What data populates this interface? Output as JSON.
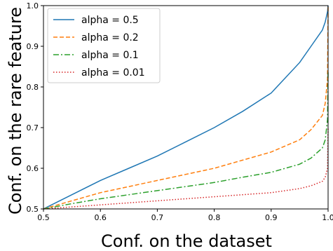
{
  "chart_data": {
    "type": "line",
    "title": "",
    "xlabel": "Conf. on the dataset",
    "ylabel": "Conf. on the rare feature",
    "xlim": [
      0.5,
      1.0
    ],
    "ylim": [
      0.5,
      1.0
    ],
    "xticks": [
      0.5,
      0.6,
      0.7,
      0.8,
      0.9,
      1.0
    ],
    "xtick_labels": [
      "0.5",
      "0.6",
      "0.7",
      "0.8",
      "0.9",
      "1.0"
    ],
    "yticks": [
      0.5,
      0.6,
      0.7,
      0.8,
      0.9,
      1.0
    ],
    "ytick_labels": [
      "0.5",
      "0.6",
      "0.7",
      "0.8",
      "0.9",
      "1.0"
    ],
    "grid": false,
    "legend": "top-left",
    "x": [
      0.5,
      0.55,
      0.6,
      0.65,
      0.7,
      0.75,
      0.8,
      0.85,
      0.9,
      0.95,
      0.97,
      0.99,
      0.995,
      0.999,
      1.0
    ],
    "series": [
      {
        "name": "alpha = 0.5",
        "color": "#1f77b4",
        "dash": "solid",
        "values": [
          0.5,
          0.535,
          0.57,
          0.6,
          0.63,
          0.665,
          0.7,
          0.74,
          0.785,
          0.86,
          0.9,
          0.94,
          0.96,
          0.985,
          1.0
        ]
      },
      {
        "name": "alpha = 0.2",
        "color": "#ff7f0e",
        "dash": "dashed",
        "values": [
          0.5,
          0.52,
          0.54,
          0.555,
          0.57,
          0.585,
          0.6,
          0.62,
          0.64,
          0.67,
          0.695,
          0.73,
          0.76,
          0.82,
          1.0
        ]
      },
      {
        "name": "alpha = 0.1",
        "color": "#2ca02c",
        "dash": "dashdot",
        "values": [
          0.5,
          0.513,
          0.525,
          0.535,
          0.545,
          0.555,
          0.565,
          0.578,
          0.59,
          0.61,
          0.625,
          0.65,
          0.67,
          0.72,
          0.84
        ]
      },
      {
        "name": "alpha = 0.01",
        "color": "#d62728",
        "dash": "dotted",
        "values": [
          0.5,
          0.505,
          0.51,
          0.515,
          0.52,
          0.525,
          0.53,
          0.535,
          0.54,
          0.55,
          0.557,
          0.568,
          0.578,
          0.6,
          0.7
        ]
      }
    ]
  }
}
